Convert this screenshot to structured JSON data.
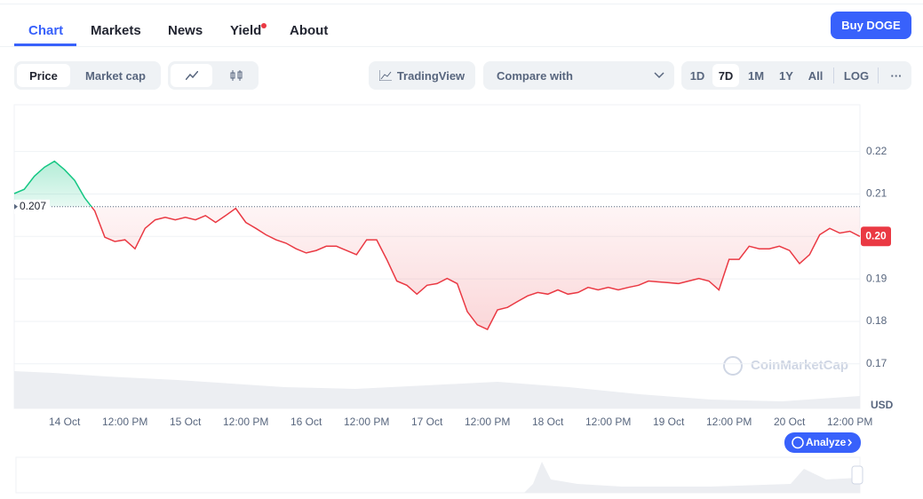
{
  "nav": {
    "tabs": [
      "Chart",
      "Markets",
      "News",
      "Yield",
      "About"
    ],
    "button": "Buy DOGE"
  },
  "toolbar": {
    "metric": [
      "Price",
      "Market cap"
    ],
    "tradingview": "TradingView",
    "compare": "Compare with",
    "ranges": [
      "1D",
      "7D",
      "1M",
      "1Y",
      "All"
    ],
    "log": "LOG",
    "more": "···"
  },
  "chart_data": {
    "type": "line",
    "x": [
      0,
      2,
      4,
      6,
      8,
      10,
      12,
      14,
      16,
      18,
      20,
      22,
      24,
      26,
      28,
      30,
      32,
      34,
      36,
      38,
      40,
      42,
      44,
      46,
      48,
      50,
      52,
      54,
      56,
      58,
      60,
      62,
      64,
      66,
      68,
      70,
      72,
      74,
      76,
      78,
      80,
      82,
      84,
      86,
      88,
      90,
      92,
      94,
      96,
      98,
      100,
      102,
      104,
      106,
      108,
      110,
      112,
      114,
      116,
      118,
      120,
      122,
      124,
      126,
      128,
      130,
      132,
      134,
      136,
      138,
      140,
      142,
      144,
      146,
      148,
      150,
      152,
      154,
      156,
      158,
      160,
      162,
      164,
      166,
      168
    ],
    "series": [
      {
        "color": "#ea3943",
        "up_color": "#16c784",
        "values": [
          0.2101,
          0.2111,
          0.2142,
          0.2163,
          0.2177,
          0.2157,
          0.2132,
          0.2091,
          0.206,
          0.1998,
          0.1988,
          0.1992,
          0.1971,
          0.2019,
          0.2039,
          0.2045,
          0.2039,
          0.2045,
          0.2039,
          0.2049,
          0.2033,
          0.2049,
          0.2066,
          0.2033,
          0.2019,
          0.2004,
          0.1992,
          0.1984,
          0.1971,
          0.1961,
          0.1967,
          0.1977,
          0.1977,
          0.1967,
          0.1957,
          0.1992,
          0.1992,
          0.1946,
          0.1895,
          0.1885,
          0.1864,
          0.1885,
          0.1889,
          0.1901,
          0.1889,
          0.1823,
          0.1792,
          0.1781,
          0.1827,
          0.1833,
          0.1847,
          0.186,
          0.1868,
          0.1864,
          0.1874,
          0.1864,
          0.1868,
          0.188,
          0.1874,
          0.188,
          0.1874,
          0.188,
          0.1885,
          0.1895,
          0.1893,
          0.1891,
          0.1889,
          0.1895,
          0.1901,
          0.1895,
          0.1874,
          0.1946,
          0.1946,
          0.1977,
          0.1971,
          0.1971,
          0.1977,
          0.1967,
          0.1936,
          0.1957,
          0.2004,
          0.2019,
          0.2008,
          0.2012,
          0.2
        ]
      }
    ],
    "baseline": 0.207,
    "current_price": 0.2,
    "current_price_label": "0.20",
    "xlim": [
      0,
      168
    ],
    "xticks": [
      {
        "value": 10,
        "label": "14 Oct"
      },
      {
        "value": 22,
        "label": "12:00 PM"
      },
      {
        "value": 34,
        "label": "15 Oct"
      },
      {
        "value": 46,
        "label": "12:00 PM"
      },
      {
        "value": 58,
        "label": "16 Oct"
      },
      {
        "value": 70,
        "label": "12:00 PM"
      },
      {
        "value": 82,
        "label": "17 Oct"
      },
      {
        "value": 94,
        "label": "12:00 PM"
      },
      {
        "value": 106,
        "label": "18 Oct"
      },
      {
        "value": 118,
        "label": "12:00 PM"
      },
      {
        "value": 130,
        "label": "19 Oct"
      },
      {
        "value": 142,
        "label": "12:00 PM"
      },
      {
        "value": 154,
        "label": "20 Oct"
      },
      {
        "value": 166,
        "label": "12:00 PM"
      }
    ],
    "ylim": [
      0.1595,
      0.231
    ],
    "yticks": [
      0.17,
      0.18,
      0.19,
      {
        "value": 0.2,
        "label": "0.20"
      },
      0.21,
      0.22
    ],
    "grid": true,
    "unit": "USD",
    "watermark": "CoinMarketCap",
    "analyze": "Analyze"
  }
}
